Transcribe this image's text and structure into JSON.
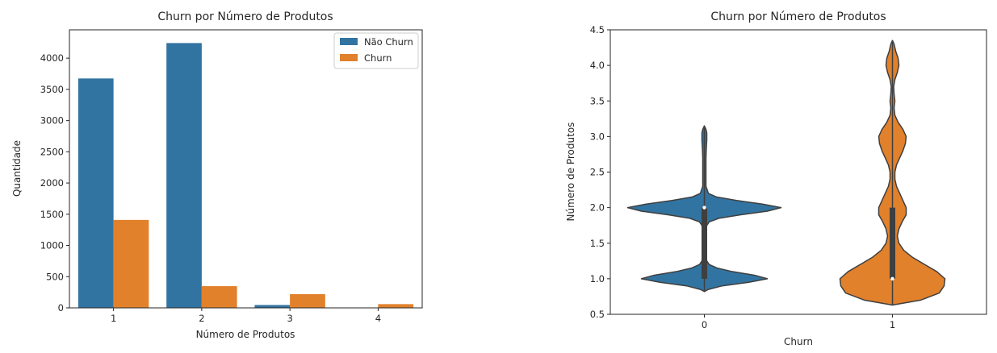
{
  "chart_data": [
    {
      "type": "bar",
      "title": "Churn por Número de Produtos",
      "xlabel": "Número de Produtos",
      "ylabel": "Quantidade",
      "categories": [
        "1",
        "2",
        "3",
        "4"
      ],
      "series": [
        {
          "name": "Não Churn",
          "color": "#3274a1",
          "values": [
            3675,
            4242,
            46,
            0
          ]
        },
        {
          "name": "Churn",
          "color": "#e1812c",
          "values": [
            1409,
            348,
            220,
            60
          ]
        }
      ],
      "ylim": [
        0,
        4454
      ],
      "yticks": [
        0,
        500,
        1000,
        1500,
        2000,
        2500,
        3000,
        3500,
        4000
      ],
      "legend": "top-right"
    },
    {
      "type": "violin",
      "title": "Churn por Número de Produtos",
      "xlabel": "Churn",
      "ylabel": "Número de Produtos",
      "categories": [
        "0",
        "1"
      ],
      "colors": [
        "#3274a1",
        "#e1812c"
      ],
      "ylim": [
        0.5,
        4.5
      ],
      "yticks": [
        "0.5",
        "1.0",
        "1.5",
        "2.0",
        "2.5",
        "3.0",
        "3.5",
        "4.0",
        "4.5"
      ],
      "violins": [
        {
          "category": "0",
          "range": [
            0.82,
            3.15
          ],
          "median": 2.0,
          "q1": 1.0,
          "q3": 2.0,
          "profile": [
            [
              0.82,
              0.0
            ],
            [
              0.85,
              5
            ],
            [
              0.9,
              22
            ],
            [
              0.95,
              55
            ],
            [
              1.0,
              78
            ],
            [
              1.05,
              62
            ],
            [
              1.1,
              35
            ],
            [
              1.15,
              16
            ],
            [
              1.2,
              6
            ],
            [
              1.25,
              3
            ],
            [
              1.35,
              2
            ],
            [
              1.5,
              2
            ],
            [
              1.65,
              2
            ],
            [
              1.75,
              3
            ],
            [
              1.8,
              6
            ],
            [
              1.85,
              18
            ],
            [
              1.9,
              45
            ],
            [
              1.95,
              78
            ],
            [
              2.0,
              95
            ],
            [
              2.05,
              72
            ],
            [
              2.1,
              40
            ],
            [
              2.15,
              15
            ],
            [
              2.2,
              5
            ],
            [
              2.3,
              2
            ],
            [
              2.5,
              2
            ],
            [
              2.7,
              2
            ],
            [
              2.85,
              2.5
            ],
            [
              2.95,
              3
            ],
            [
              3.0,
              3
            ],
            [
              3.05,
              3
            ],
            [
              3.1,
              2
            ],
            [
              3.15,
              0
            ]
          ]
        },
        {
          "category": "1",
          "range": [
            0.63,
            4.35
          ],
          "median": 1.0,
          "q1": 1.0,
          "q3": 2.0,
          "profile": [
            [
              0.63,
              0.0
            ],
            [
              0.7,
              35
            ],
            [
              0.8,
              58
            ],
            [
              0.9,
              64
            ],
            [
              1.0,
              65
            ],
            [
              1.1,
              55
            ],
            [
              1.2,
              40
            ],
            [
              1.3,
              25
            ],
            [
              1.4,
              14
            ],
            [
              1.5,
              8
            ],
            [
              1.6,
              6
            ],
            [
              1.7,
              8
            ],
            [
              1.8,
              12
            ],
            [
              1.9,
              17
            ],
            [
              2.0,
              17
            ],
            [
              2.1,
              13
            ],
            [
              2.2,
              9
            ],
            [
              2.3,
              5
            ],
            [
              2.4,
              3
            ],
            [
              2.5,
              3
            ],
            [
              2.6,
              5
            ],
            [
              2.7,
              9
            ],
            [
              2.8,
              13
            ],
            [
              2.9,
              16
            ],
            [
              3.0,
              17
            ],
            [
              3.1,
              13
            ],
            [
              3.2,
              7
            ],
            [
              3.3,
              3
            ],
            [
              3.4,
              2
            ],
            [
              3.5,
              3
            ],
            [
              3.6,
              2
            ],
            [
              3.7,
              1.5
            ],
            [
              3.8,
              3
            ],
            [
              3.9,
              6
            ],
            [
              4.0,
              8
            ],
            [
              4.1,
              7
            ],
            [
              4.2,
              4
            ],
            [
              4.3,
              2
            ],
            [
              4.35,
              0
            ]
          ]
        }
      ]
    }
  ]
}
